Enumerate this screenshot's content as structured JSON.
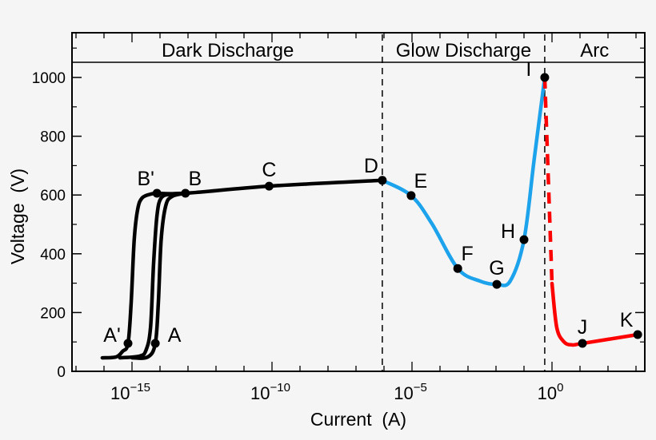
{
  "chart_data": {
    "type": "line",
    "xlabel": "Current  (A)",
    "ylabel": "Voltage  (V)",
    "x_scale": "log",
    "xlim": [
      7.9e-18,
      2000
    ],
    "ylim": [
      0,
      1150
    ],
    "x_ticks": [
      {
        "base": "10",
        "exp": "−15",
        "value": 1e-15
      },
      {
        "base": "10",
        "exp": "−10",
        "value": 1e-10
      },
      {
        "base": "10",
        "exp": "−5",
        "value": 1e-05
      },
      {
        "base": "10",
        "exp": "0",
        "value": 1
      }
    ],
    "y_ticks": [
      0,
      200,
      400,
      600,
      800,
      1000
    ],
    "regions": [
      {
        "label": "Dark Discharge",
        "from": 7.9e-18,
        "to": 8.7e-07
      },
      {
        "label": "Glow Discharge",
        "from": 8.7e-07,
        "to": 0.55
      },
      {
        "label": "Arc",
        "from": 0.55,
        "to": 2000
      }
    ],
    "region_boundaries": [
      8.7e-07,
      0.55
    ],
    "colors": {
      "dark": "#000000",
      "glow": "#1ca3ec",
      "arc": "#ff0000",
      "background": "#f5f5f5"
    },
    "series": [
      {
        "color": "#000000",
        "style": "solid",
        "points": [
          [
            8.7e-17,
            46
          ],
          [
            2.7e-16,
            49
          ],
          [
            4.6e-16,
            68
          ],
          [
            7.2e-16,
            95
          ],
          [
            9.3e-16,
            231
          ],
          [
            1.2e-15,
            448
          ],
          [
            1.6e-15,
            552
          ],
          [
            2.3e-15,
            590
          ],
          [
            4.6e-15,
            603
          ],
          [
            7.8e-15,
            606
          ]
        ]
      },
      {
        "color": "#000000",
        "style": "solid",
        "points": [
          [
            3.7e-16,
            46
          ],
          [
            1.9e-15,
            52
          ],
          [
            3.2e-15,
            73
          ],
          [
            4.6e-15,
            150
          ],
          [
            5.9e-15,
            367
          ],
          [
            7.8e-15,
            530
          ],
          [
            1.1e-14,
            590
          ],
          [
            2.5e-14,
            603
          ],
          [
            8.1e-14,
            606
          ]
        ]
      },
      {
        "color": "#000000",
        "style": "solid",
        "points": [
          [
            1e-15,
            46
          ],
          [
            3.7e-15,
            49
          ],
          [
            6.8e-15,
            95
          ],
          [
            8.7e-15,
            231
          ],
          [
            1.1e-14,
            448
          ],
          [
            1.6e-14,
            563
          ],
          [
            2.7e-14,
            595
          ],
          [
            8.1e-14,
            606
          ]
        ]
      },
      {
        "color": "#000000",
        "style": "solid",
        "points": [
          [
            7.8e-15,
            606
          ],
          [
            8.1e-14,
            606
          ],
          [
            7.9e-11,
            630
          ],
          [
            8.7e-07,
            650
          ]
        ]
      },
      {
        "color": "#1ca3ec",
        "style": "solid",
        "points": [
          [
            8.7e-07,
            650
          ],
          [
            9.3e-06,
            598
          ],
          [
            5.1e-05,
            503
          ],
          [
            0.00043,
            350
          ],
          [
            0.0027,
            307
          ],
          [
            0.0107,
            296
          ],
          [
            0.032,
            307
          ],
          [
            0.1,
            448
          ],
          [
            0.23,
            720
          ],
          [
            0.55,
            1000
          ]
        ]
      },
      {
        "color": "#ff0000",
        "style": "dashed",
        "points": [
          [
            0.55,
            1000
          ],
          [
            1.0,
            299
          ]
        ]
      },
      {
        "color": "#ff0000",
        "style": "solid",
        "points": [
          [
            1.0,
            299
          ],
          [
            1.48,
            149
          ],
          [
            2.7,
            100
          ],
          [
            5.2,
            90
          ],
          [
            12.2,
            95
          ],
          [
            1150,
            125
          ]
        ]
      }
    ],
    "labeled_points": [
      {
        "label": "A'",
        "x": 7.2e-16,
        "y": 95,
        "pos": "left"
      },
      {
        "label": "A",
        "x": 6.8e-15,
        "y": 95,
        "pos": "right"
      },
      {
        "label": "B'",
        "x": 7.8e-15,
        "y": 606,
        "pos": "upleft"
      },
      {
        "label": "B",
        "x": 8.1e-14,
        "y": 606,
        "pos": "upright"
      },
      {
        "label": "C",
        "x": 7.9e-11,
        "y": 630,
        "pos": "up"
      },
      {
        "label": "D",
        "x": 8.7e-07,
        "y": 650,
        "pos": "upleft"
      },
      {
        "label": "E",
        "x": 9.3e-06,
        "y": 598,
        "pos": "upright"
      },
      {
        "label": "F",
        "x": 0.00043,
        "y": 350,
        "pos": "upright"
      },
      {
        "label": "G",
        "x": 0.0107,
        "y": 296,
        "pos": "up"
      },
      {
        "label": "H",
        "x": 0.1,
        "y": 448,
        "pos": "left"
      },
      {
        "label": "I",
        "x": 0.55,
        "y": 1000,
        "pos": "left"
      },
      {
        "label": "J",
        "x": 12.2,
        "y": 95,
        "pos": "up"
      },
      {
        "label": "K",
        "x": 1150,
        "y": 125,
        "pos": "upleft"
      }
    ]
  }
}
